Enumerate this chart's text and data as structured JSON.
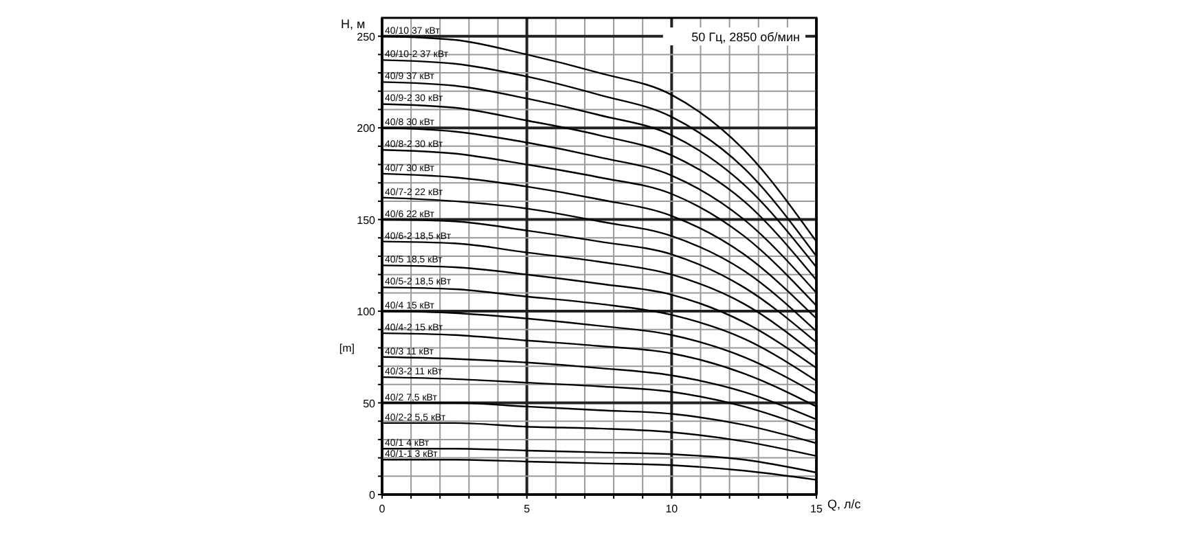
{
  "chart_data": {
    "type": "line",
    "xlabel": "Q, л/с",
    "ylabel": "H, м",
    "y2label": "[m]",
    "annotations": [
      "50 Гц, 2850 об/мин"
    ],
    "x": [
      0,
      2.5,
      5,
      7.5,
      10,
      12.5,
      15
    ],
    "xlim": [
      0,
      15
    ],
    "ylim": [
      0,
      260
    ],
    "xticks": [
      0,
      {
        "value": 1,
        "label": null
      },
      {
        "value": 2,
        "label": null
      },
      {
        "value": 3,
        "label": null
      },
      {
        "value": 4,
        "label": null
      },
      5,
      {
        "value": 6,
        "label": null
      },
      {
        "value": 7,
        "label": null
      },
      {
        "value": 8,
        "label": null
      },
      {
        "value": 9,
        "label": null
      },
      10,
      {
        "value": 11,
        "label": null
      },
      {
        "value": 12,
        "label": null
      },
      {
        "value": 13,
        "label": null
      },
      {
        "value": 14,
        "label": null
      },
      15
    ],
    "yticks": [
      0,
      {
        "value": 10,
        "label": null
      },
      {
        "value": 20,
        "label": null
      },
      {
        "value": 30,
        "label": null
      },
      {
        "value": 40,
        "label": null
      },
      50,
      {
        "value": 60,
        "label": null
      },
      {
        "value": 70,
        "label": null
      },
      {
        "value": 80,
        "label": null
      },
      {
        "value": 90,
        "label": null
      },
      100,
      {
        "value": 110,
        "label": null
      },
      {
        "value": 120,
        "label": null
      },
      {
        "value": 130,
        "label": null
      },
      {
        "value": 140,
        "label": null
      },
      150,
      {
        "value": 160,
        "label": null
      },
      {
        "value": 170,
        "label": null
      },
      {
        "value": 180,
        "label": null
      },
      {
        "value": 190,
        "label": null
      },
      200,
      {
        "value": 210,
        "label": null
      },
      {
        "value": 220,
        "label": null
      },
      {
        "value": 230,
        "label": null
      },
      {
        "value": 240,
        "label": null
      },
      250
    ],
    "grid": true,
    "marker": "none",
    "line_style": "solid",
    "series": [
      {
        "name": "40/10 37 кВт",
        "color": "#000000",
        "values": [
          250,
          248,
          240,
          230,
          218,
          188,
          138
        ]
      },
      {
        "name": "40/10-2 37 кВт",
        "color": "#000000",
        "values": [
          237,
          235,
          228,
          218,
          206,
          178,
          130
        ]
      },
      {
        "name": "40/9 37 кВт",
        "color": "#000000",
        "values": [
          225,
          223,
          216,
          207,
          196,
          169,
          124
        ]
      },
      {
        "name": "40/9-2 30 кВт",
        "color": "#000000",
        "values": [
          213,
          211,
          204,
          196,
          185,
          160,
          117
        ]
      },
      {
        "name": "40/8 30 кВт",
        "color": "#000000",
        "values": [
          200,
          198,
          192,
          184,
          174,
          150,
          110
        ]
      },
      {
        "name": "40/8-2 30 кВт",
        "color": "#000000",
        "values": [
          188,
          186,
          180,
          173,
          164,
          141,
          103
        ]
      },
      {
        "name": "40/7 30 кВт",
        "color": "#000000",
        "values": [
          175,
          173,
          168,
          161,
          152,
          131,
          96
        ]
      },
      {
        "name": "40/7-2 22 кВт",
        "color": "#000000",
        "values": [
          162,
          160,
          156,
          149,
          141,
          122,
          89
        ]
      },
      {
        "name": "40/6 22 кВт",
        "color": "#000000",
        "values": [
          150,
          149,
          144,
          138,
          131,
          113,
          83
        ]
      },
      {
        "name": "40/6-2 18,5 кВт",
        "color": "#000000",
        "values": [
          138,
          137,
          132,
          127,
          120,
          104,
          76
        ]
      },
      {
        "name": "40/5 18,5 кВт",
        "color": "#000000",
        "values": [
          125,
          124,
          120,
          115,
          109,
          94,
          69
        ]
      },
      {
        "name": "40/5-2 18,5 кВт",
        "color": "#000000",
        "values": [
          113,
          112,
          108,
          104,
          98,
          85,
          62
        ]
      },
      {
        "name": "40/4 15 кВт",
        "color": "#000000",
        "values": [
          100,
          99,
          96,
          92,
          87,
          75,
          55
        ]
      },
      {
        "name": "40/4-2 15 кВт",
        "color": "#000000",
        "values": [
          88,
          87,
          84,
          81,
          77,
          66,
          48
        ]
      },
      {
        "name": "40/3 11 кВт",
        "color": "#000000",
        "values": [
          75,
          74,
          72,
          69,
          65,
          56,
          41
        ]
      },
      {
        "name": "40/3-2 11 кВт",
        "color": "#000000",
        "values": [
          64,
          63,
          61,
          59,
          56,
          48,
          35
        ]
      },
      {
        "name": "40/2 7,5 кВт",
        "color": "#000000",
        "values": [
          50,
          50,
          48,
          46,
          44,
          38,
          28
        ]
      },
      {
        "name": "40/2-2 5,5 кВт",
        "color": "#000000",
        "values": [
          39,
          39,
          37,
          36,
          34,
          29,
          21
        ]
      },
      {
        "name": "40/1 4 кВт",
        "color": "#000000",
        "values": [
          25,
          25,
          24,
          23,
          22,
          19,
          12
        ]
      },
      {
        "name": "40/1-1 3 кВт",
        "color": "#000000",
        "values": [
          19,
          19,
          18,
          17,
          16,
          13,
          8
        ]
      }
    ]
  }
}
